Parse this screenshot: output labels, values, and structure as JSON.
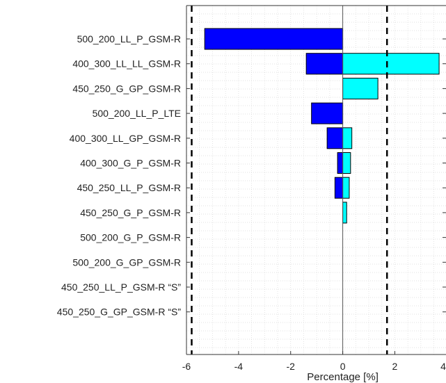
{
  "chart_data": {
    "type": "bar",
    "orientation": "horizontal",
    "categories": [
      "500_200_LL_P_GSM-R",
      "400_300_LL_LL_GSM-R",
      "450_250_G_GP_GSM-R",
      "500_200_LL_P_LTE",
      "400_300_LL_GP_GSM-R",
      "400_300_G_P_GSM-R",
      "450_250_LL_P_GSM-R",
      "450_250_G_P_GSM-R",
      "500_200_G_P_GSM-R",
      "500_200_G_GP_GSM-R",
      "450_250_LL_P_GSM-R “S”",
      "450_250_G_GP_GSM-R “S”"
    ],
    "series": [
      {
        "color": "#0000ff",
        "values": [
          -5.3,
          -1.4,
          0,
          -1.2,
          -0.6,
          -0.2,
          -0.3,
          0,
          0,
          0,
          0,
          0
        ]
      },
      {
        "color": "#00ffff",
        "values": [
          0,
          3.7,
          1.35,
          0,
          0.35,
          0.3,
          0.25,
          0.15,
          0,
          0,
          0,
          0
        ]
      }
    ],
    "reference_lines": [
      -5.8,
      1.7
    ],
    "xlim": [
      -6,
      4
    ],
    "x_ticks": [
      "-6",
      "-4",
      "-2",
      "0",
      "2",
      "4"
    ],
    "xlabel": "Percentage [%]",
    "ylabel": "",
    "title": "",
    "grid": "minor dotted"
  }
}
